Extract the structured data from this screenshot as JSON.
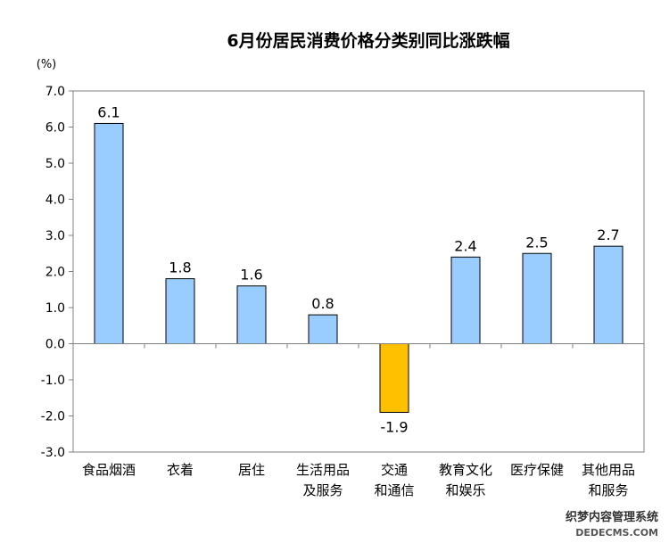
{
  "chart_data": {
    "type": "bar",
    "title": "6月份居民消费价格分类别同比涨跌幅",
    "unit_label": "(%)",
    "ylim": [
      -3.0,
      7.0
    ],
    "yticks": [
      "7.0",
      "6.0",
      "5.0",
      "4.0",
      "3.0",
      "2.0",
      "1.0",
      "0.0",
      "-1.0",
      "-2.0",
      "-3.0"
    ],
    "categories": [
      [
        "食品烟酒"
      ],
      [
        "衣着"
      ],
      [
        "居住"
      ],
      [
        "生活用品",
        "及服务"
      ],
      [
        "交通",
        "和通信"
      ],
      [
        "教育文化",
        "和娱乐"
      ],
      [
        "医疗保健"
      ],
      [
        "其他用品",
        "和服务"
      ]
    ],
    "values": [
      6.1,
      1.8,
      1.6,
      0.8,
      -1.9,
      2.4,
      2.5,
      2.7
    ],
    "value_labels": [
      "6.1",
      "1.8",
      "1.6",
      "0.8",
      "-1.9",
      "2.4",
      "2.5",
      "2.7"
    ],
    "colors": {
      "positive": "#99ccff",
      "negative": "#ffc000",
      "bar_stroke": "#000000",
      "axis": "#808080"
    },
    "grid": false,
    "legend": "none"
  },
  "watermark": {
    "line1": "织梦内容管理系统",
    "line2": "DEDECMS.COM"
  }
}
